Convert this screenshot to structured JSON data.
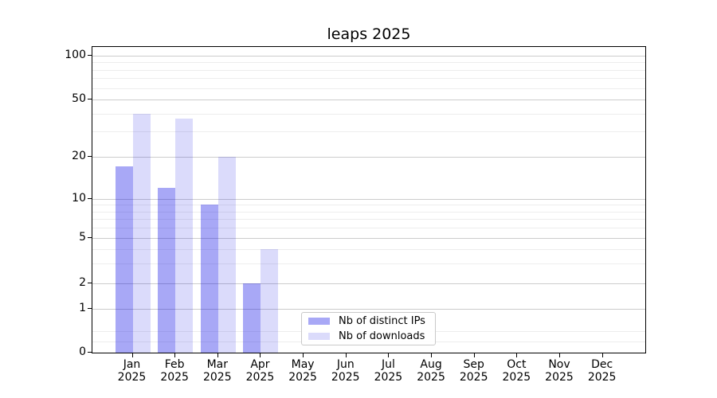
{
  "title": "leaps 2025",
  "chart_data": {
    "type": "bar",
    "title": "leaps 2025",
    "categories": [
      "Jan 2025",
      "Feb 2025",
      "Mar 2025",
      "Apr 2025",
      "May 2025",
      "Jun 2025",
      "Jul 2025",
      "Aug 2025",
      "Sep 2025",
      "Oct 2025",
      "Nov 2025",
      "Dec 2025"
    ],
    "series": [
      {
        "name": "Nb of distinct IPs",
        "color": "rgba(0,0,230,0.34)",
        "values": [
          17,
          12,
          9,
          2,
          0,
          0,
          0,
          0,
          0,
          0,
          0,
          0
        ]
      },
      {
        "name": "Nb of downloads",
        "color": "rgba(0,0,230,0.14)",
        "values": [
          40,
          37,
          20,
          4,
          0,
          0,
          0,
          0,
          0,
          0,
          0,
          0
        ]
      }
    ],
    "xlabel": "",
    "ylabel": "",
    "yscale": "log-like with zero baseline",
    "yticks": [
      0,
      1,
      2,
      5,
      10,
      20,
      50,
      100
    ],
    "ytick_labels": [
      "0",
      "1",
      "2",
      "5",
      "10",
      "20",
      "50",
      "100"
    ],
    "minor_gridline_values": [
      0.25,
      0.5,
      3,
      4,
      6,
      7,
      8,
      9,
      30,
      40,
      60,
      70,
      80,
      90
    ],
    "ylim": [
      0,
      110
    ],
    "grid": "horizontal major and minor gridlines",
    "legend_position": "inside lower-center"
  },
  "legend": {
    "items": [
      {
        "label": "Nb of distinct IPs",
        "color": "rgba(0,0,230,0.34)"
      },
      {
        "label": "Nb of downloads",
        "color": "rgba(0,0,230,0.14)"
      }
    ]
  },
  "colors": {
    "background": "#ffffff",
    "spine": "#000000",
    "grid_major": "#cccccc",
    "grid_minor": "#ededed",
    "bar_distinct_ips": "rgba(0,0,230,0.34)",
    "bar_downloads": "rgba(0,0,230,0.14)"
  }
}
